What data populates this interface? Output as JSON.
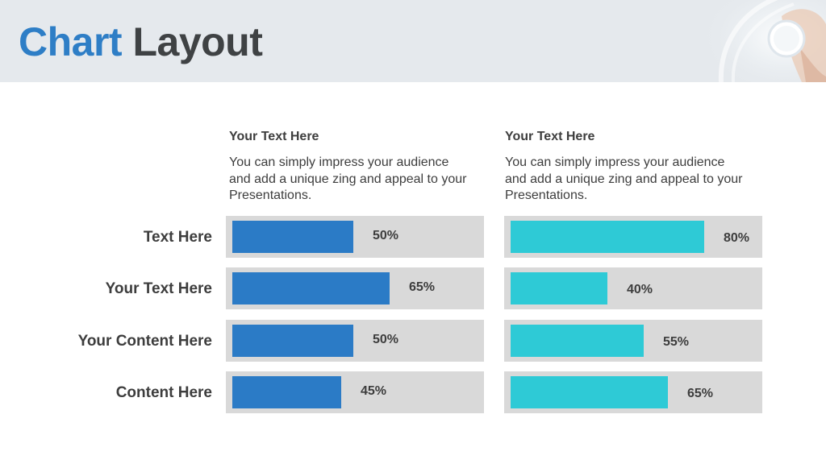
{
  "title": {
    "accent": "Chart",
    "main": "Layout"
  },
  "columns": [
    {
      "heading": "Your Text  Here",
      "description": "You can simply impress your audience and add a unique zing and appeal to your Presentations."
    },
    {
      "heading": "Your Text  Here",
      "description": "You can simply impress your audience and add a unique zing and appeal to your Presentations."
    }
  ],
  "chart_data": {
    "type": "bar",
    "orientation": "horizontal",
    "categories": [
      "Text Here",
      "Your Text Here",
      "Your Content  Here",
      "Content Here"
    ],
    "series": [
      {
        "values": [
          50,
          65,
          50,
          45
        ],
        "labels": [
          "50%",
          "65%",
          "50%",
          "45%"
        ],
        "color": "#2b7bc6"
      },
      {
        "values": [
          80,
          40,
          55,
          65
        ],
        "labels": [
          "80%",
          "40%",
          "55%",
          "65%"
        ],
        "color": "#2ecad6"
      }
    ],
    "xlim": [
      0,
      100
    ],
    "track_color": "#d9d9d9"
  }
}
